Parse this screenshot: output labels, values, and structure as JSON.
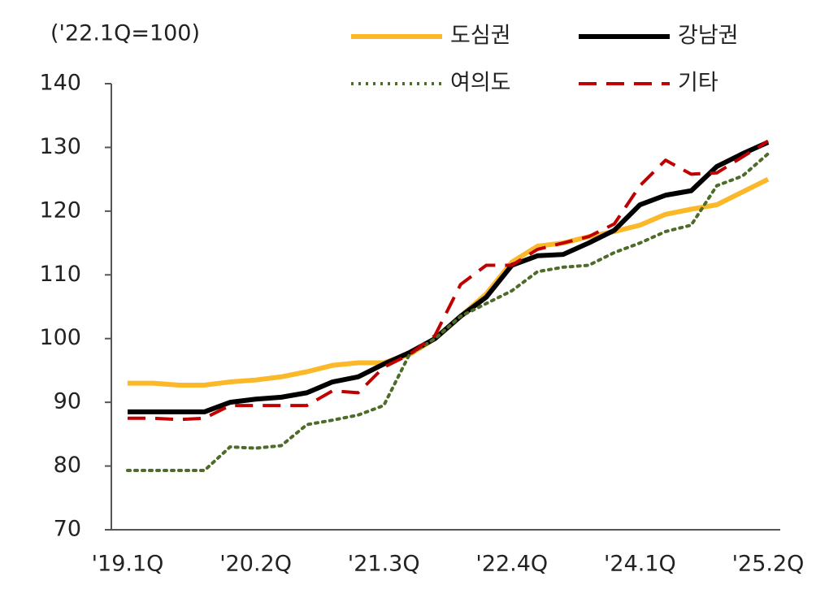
{
  "chart_data": {
    "type": "line",
    "unit_label": "('22.1Q=100)",
    "categories": [
      "'19.1Q",
      null,
      null,
      null,
      null,
      "'20.2Q",
      null,
      null,
      null,
      null,
      "'21.3Q",
      null,
      null,
      null,
      null,
      "'22.4Q",
      null,
      null,
      null,
      null,
      "'24.1Q",
      null,
      null,
      null,
      null,
      "'25.2Q"
    ],
    "series": [
      {
        "name": "도심권",
        "color": "#fbb829",
        "dash": "solid",
        "values": [
          93,
          93,
          92.7,
          92.7,
          93.2,
          93.5,
          94,
          94.8,
          95.8,
          96.2,
          96.2,
          97.5,
          100,
          103.5,
          107,
          112,
          114.5,
          115,
          116,
          116.8,
          117.8,
          119.5,
          120.3,
          121,
          123,
          125
        ]
      },
      {
        "name": "강남권",
        "color": "#000000",
        "dash": "solid",
        "values": [
          88.5,
          88.5,
          88.5,
          88.5,
          90,
          90.5,
          90.8,
          91.5,
          93.2,
          94,
          96,
          97.8,
          100,
          103.5,
          106.5,
          111.5,
          113,
          113.2,
          115,
          117,
          121,
          122.5,
          123.2,
          127,
          129,
          130.8
        ]
      },
      {
        "name": "여의도",
        "color": "#4e6b2a",
        "dash": "dot",
        "values": [
          79.3,
          79.3,
          79.3,
          79.3,
          83,
          82.8,
          83.2,
          86.5,
          87.2,
          88,
          89.5,
          97.5,
          100,
          103.5,
          105.5,
          107.5,
          110.5,
          111.2,
          111.5,
          113.5,
          115,
          116.8,
          117.8,
          124,
          125.5,
          129
        ]
      },
      {
        "name": "기타",
        "color": "#c00000",
        "dash": "dash",
        "values": [
          87.5,
          87.5,
          87.3,
          87.5,
          89.5,
          89.5,
          89.5,
          89.5,
          91.8,
          91.5,
          95.5,
          97.5,
          100.5,
          108.5,
          111.5,
          111.5,
          114,
          115,
          116,
          118,
          124,
          128,
          125.8,
          126,
          128.5,
          131
        ]
      }
    ],
    "ylim": [
      70,
      140
    ],
    "yticks": [
      70,
      80,
      90,
      100,
      110,
      120,
      130,
      140
    ],
    "grid": false
  }
}
